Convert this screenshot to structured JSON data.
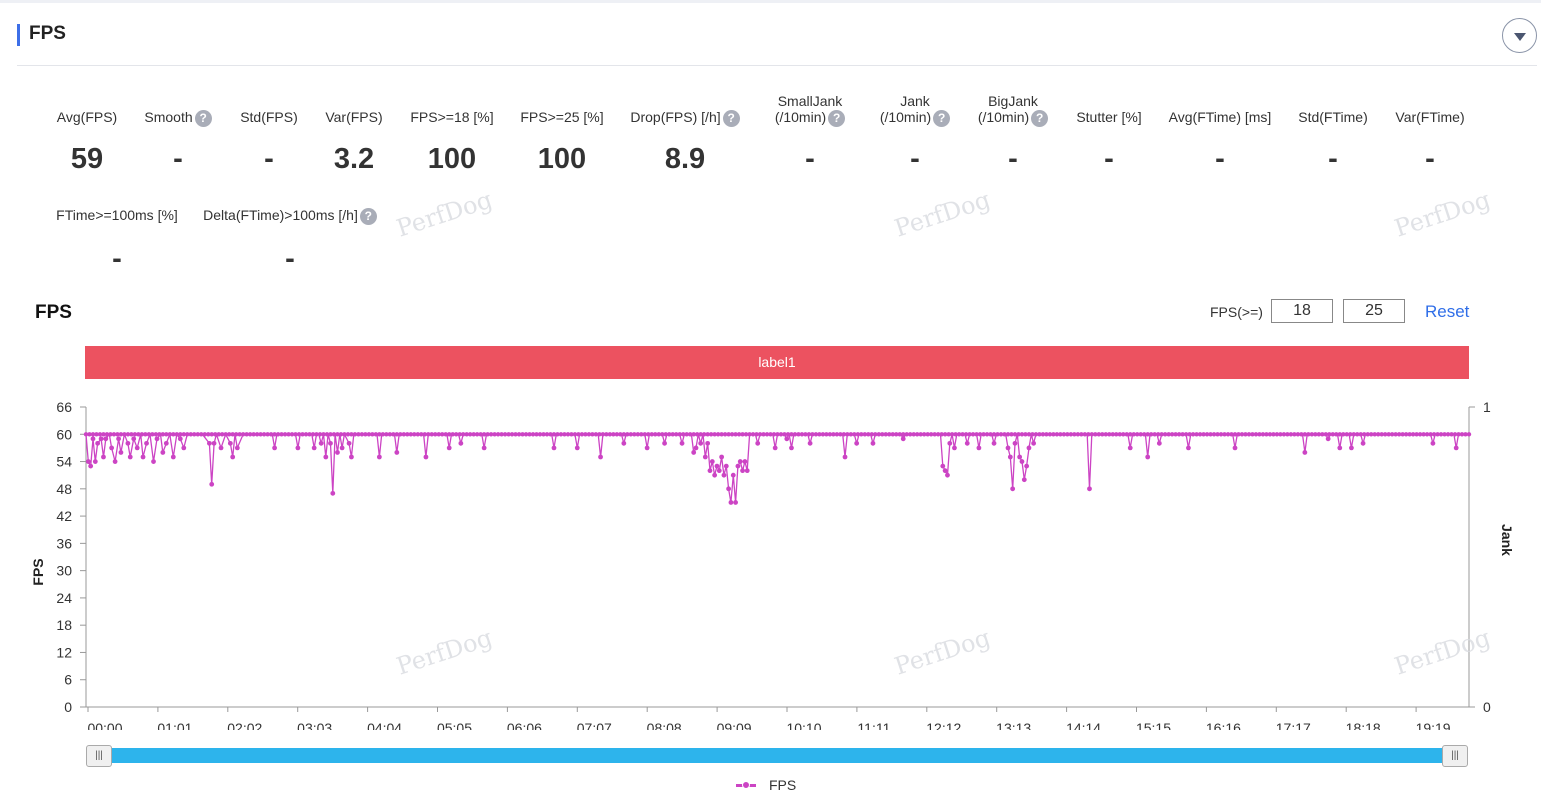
{
  "section": {
    "title": "FPS"
  },
  "metrics_row1": [
    {
      "label": "Avg(FPS)",
      "value": "59",
      "help": false
    },
    {
      "label": "Smooth",
      "value": "-",
      "help": true
    },
    {
      "label": "Std(FPS)",
      "value": "-",
      "help": false
    },
    {
      "label": "Var(FPS)",
      "value": "3.2",
      "help": false
    },
    {
      "label": "FPS>=18 [%]",
      "value": "100",
      "help": false
    },
    {
      "label": "FPS>=25 [%]",
      "value": "100",
      "help": false
    },
    {
      "label": "Drop(FPS) [/h]",
      "value": "8.9",
      "help": true
    },
    {
      "label": "SmallJank",
      "label2": "(/10min)",
      "value": "-",
      "help": true
    },
    {
      "label": "Jank",
      "label2": "(/10min)",
      "value": "-",
      "help": true
    },
    {
      "label": "BigJank",
      "label2": "(/10min)",
      "value": "-",
      "help": true
    },
    {
      "label": "Stutter [%]",
      "value": "-",
      "help": false
    },
    {
      "label": "Avg(FTime) [ms]",
      "value": "-",
      "help": false
    },
    {
      "label": "Std(FTime)",
      "value": "-",
      "help": false
    },
    {
      "label": "Var(FTime)",
      "value": "-",
      "help": false
    }
  ],
  "metrics_row2": [
    {
      "label": "FTime>=100ms [%]",
      "value": "-",
      "help": false
    },
    {
      "label": "Delta(FTime)>100ms [/h]",
      "value": "-",
      "help": true
    }
  ],
  "help_glyph": "?",
  "watermark": "PerfDog",
  "chart_panel": {
    "title": "FPS",
    "threshold_label": "FPS(>=)",
    "threshold_low": "18",
    "threshold_high": "25",
    "reset_label": "Reset",
    "label_bar": "label1",
    "slider_handle_glyph": "|||"
  },
  "chart_data": {
    "type": "line",
    "ylabel": "FPS",
    "y2label": "Jank",
    "ylim": [
      0,
      66
    ],
    "yticks": [
      0,
      6,
      12,
      18,
      24,
      30,
      36,
      42,
      48,
      54,
      60,
      66
    ],
    "y2lim": [
      0,
      1
    ],
    "y2ticks": [
      0,
      1
    ],
    "xticks": [
      "00:00",
      "01:01",
      "02:02",
      "03:03",
      "04:04",
      "05:05",
      "06:06",
      "07:07",
      "08:08",
      "09:09",
      "10:10",
      "11:11",
      "12:12",
      "13:13",
      "14:14",
      "15:15",
      "16:16",
      "17:17",
      "18:18",
      "19:19"
    ],
    "x_unit": "minutes",
    "x_range": [
      0,
      1188
    ],
    "grid": false,
    "legend": "bottom-center",
    "color": "#cc44c4",
    "series": [
      {
        "name": "FPS",
        "baseline": 60,
        "points": [
          [
            0,
            60
          ],
          [
            2,
            54
          ],
          [
            4,
            53
          ],
          [
            6,
            59
          ],
          [
            8,
            54
          ],
          [
            10,
            58
          ],
          [
            13,
            59
          ],
          [
            15,
            55
          ],
          [
            17,
            59
          ],
          [
            20,
            60
          ],
          [
            22,
            57
          ],
          [
            25,
            54
          ],
          [
            28,
            59
          ],
          [
            30,
            56
          ],
          [
            33,
            60
          ],
          [
            36,
            58
          ],
          [
            38,
            55
          ],
          [
            41,
            59
          ],
          [
            44,
            57
          ],
          [
            47,
            60
          ],
          [
            49,
            55
          ],
          [
            52,
            58
          ],
          [
            55,
            60
          ],
          [
            58,
            54
          ],
          [
            61,
            59
          ],
          [
            64,
            60
          ],
          [
            66,
            56
          ],
          [
            69,
            58
          ],
          [
            72,
            60
          ],
          [
            75,
            55
          ],
          [
            78,
            60
          ],
          [
            81,
            59
          ],
          [
            84,
            57
          ],
          [
            87,
            60
          ],
          [
            100,
            60
          ],
          [
            106,
            58
          ],
          [
            108,
            49
          ],
          [
            110,
            58
          ],
          [
            112,
            60
          ],
          [
            116,
            57
          ],
          [
            120,
            60
          ],
          [
            124,
            58
          ],
          [
            126,
            55
          ],
          [
            128,
            60
          ],
          [
            130,
            57
          ],
          [
            135,
            60
          ],
          [
            160,
            60
          ],
          [
            162,
            57
          ],
          [
            164,
            60
          ],
          [
            180,
            60
          ],
          [
            182,
            57
          ],
          [
            184,
            60
          ],
          [
            194,
            60
          ],
          [
            196,
            57
          ],
          [
            198,
            60
          ],
          [
            200,
            60
          ],
          [
            202,
            58
          ],
          [
            204,
            60
          ],
          [
            206,
            55
          ],
          [
            208,
            60
          ],
          [
            210,
            58
          ],
          [
            212,
            47
          ],
          [
            214,
            60
          ],
          [
            216,
            56
          ],
          [
            218,
            60
          ],
          [
            220,
            57
          ],
          [
            222,
            60
          ],
          [
            226,
            58
          ],
          [
            228,
            55
          ],
          [
            230,
            60
          ],
          [
            250,
            60
          ],
          [
            252,
            55
          ],
          [
            254,
            60
          ],
          [
            265,
            60
          ],
          [
            267,
            56
          ],
          [
            269,
            60
          ],
          [
            290,
            60
          ],
          [
            292,
            55
          ],
          [
            294,
            60
          ],
          [
            310,
            60
          ],
          [
            312,
            57
          ],
          [
            314,
            60
          ],
          [
            320,
            60
          ],
          [
            322,
            58
          ],
          [
            324,
            60
          ],
          [
            340,
            60
          ],
          [
            342,
            57
          ],
          [
            344,
            60
          ],
          [
            400,
            60
          ],
          [
            402,
            57
          ],
          [
            404,
            60
          ],
          [
            420,
            60
          ],
          [
            422,
            57
          ],
          [
            424,
            60
          ],
          [
            440,
            60
          ],
          [
            442,
            55
          ],
          [
            444,
            60
          ],
          [
            460,
            60
          ],
          [
            462,
            58
          ],
          [
            464,
            60
          ],
          [
            480,
            60
          ],
          [
            482,
            57
          ],
          [
            484,
            60
          ],
          [
            495,
            60
          ],
          [
            497,
            58
          ],
          [
            499,
            60
          ],
          [
            510,
            60
          ],
          [
            512,
            58
          ],
          [
            514,
            60
          ],
          [
            520,
            60
          ],
          [
            522,
            56
          ],
          [
            524,
            57
          ],
          [
            526,
            60
          ],
          [
            528,
            58
          ],
          [
            530,
            60
          ],
          [
            532,
            55
          ],
          [
            534,
            58
          ],
          [
            536,
            52
          ],
          [
            538,
            54
          ],
          [
            540,
            51
          ],
          [
            542,
            53
          ],
          [
            544,
            52
          ],
          [
            546,
            55
          ],
          [
            548,
            51
          ],
          [
            550,
            53
          ],
          [
            552,
            48
          ],
          [
            554,
            45
          ],
          [
            556,
            51
          ],
          [
            558,
            45
          ],
          [
            560,
            53
          ],
          [
            562,
            54
          ],
          [
            564,
            52
          ],
          [
            566,
            54
          ],
          [
            568,
            52
          ],
          [
            570,
            60
          ],
          [
            575,
            60
          ],
          [
            577,
            58
          ],
          [
            579,
            60
          ],
          [
            590,
            60
          ],
          [
            592,
            57
          ],
          [
            594,
            60
          ],
          [
            600,
            60
          ],
          [
            602,
            59
          ],
          [
            604,
            60
          ],
          [
            606,
            57
          ],
          [
            608,
            60
          ],
          [
            620,
            60
          ],
          [
            622,
            58
          ],
          [
            624,
            60
          ],
          [
            650,
            60
          ],
          [
            652,
            55
          ],
          [
            654,
            60
          ],
          [
            660,
            60
          ],
          [
            662,
            58
          ],
          [
            664,
            60
          ],
          [
            674,
            60
          ],
          [
            676,
            58
          ],
          [
            678,
            60
          ],
          [
            700,
            60
          ],
          [
            702,
            59
          ],
          [
            704,
            60
          ],
          [
            734,
            60
          ],
          [
            736,
            53
          ],
          [
            738,
            52
          ],
          [
            740,
            51
          ],
          [
            742,
            58
          ],
          [
            744,
            60
          ],
          [
            746,
            57
          ],
          [
            748,
            60
          ],
          [
            755,
            60
          ],
          [
            757,
            58
          ],
          [
            759,
            60
          ],
          [
            765,
            60
          ],
          [
            767,
            57
          ],
          [
            769,
            60
          ],
          [
            778,
            60
          ],
          [
            780,
            58
          ],
          [
            782,
            60
          ],
          [
            790,
            60
          ],
          [
            792,
            57
          ],
          [
            794,
            55
          ],
          [
            796,
            48
          ],
          [
            798,
            58
          ],
          [
            800,
            60
          ],
          [
            802,
            55
          ],
          [
            804,
            54
          ],
          [
            806,
            50
          ],
          [
            808,
            53
          ],
          [
            810,
            57
          ],
          [
            812,
            60
          ],
          [
            814,
            58
          ],
          [
            816,
            60
          ],
          [
            820,
            60
          ],
          [
            860,
            60
          ],
          [
            862,
            48
          ],
          [
            864,
            60
          ],
          [
            895,
            60
          ],
          [
            897,
            57
          ],
          [
            899,
            60
          ],
          [
            910,
            60
          ],
          [
            912,
            55
          ],
          [
            914,
            60
          ],
          [
            920,
            60
          ],
          [
            922,
            58
          ],
          [
            924,
            60
          ],
          [
            945,
            60
          ],
          [
            947,
            57
          ],
          [
            949,
            60
          ],
          [
            985,
            60
          ],
          [
            987,
            57
          ],
          [
            989,
            60
          ],
          [
            1045,
            60
          ],
          [
            1047,
            56
          ],
          [
            1049,
            60
          ],
          [
            1065,
            60
          ],
          [
            1067,
            59
          ],
          [
            1069,
            60
          ],
          [
            1075,
            60
          ],
          [
            1077,
            57
          ],
          [
            1079,
            60
          ],
          [
            1085,
            60
          ],
          [
            1087,
            57
          ],
          [
            1089,
            60
          ],
          [
            1095,
            60
          ],
          [
            1097,
            58
          ],
          [
            1099,
            60
          ],
          [
            1155,
            60
          ],
          [
            1157,
            58
          ],
          [
            1159,
            60
          ],
          [
            1175,
            60
          ],
          [
            1177,
            57
          ],
          [
            1179,
            60
          ],
          [
            1188,
            60
          ]
        ]
      }
    ]
  }
}
